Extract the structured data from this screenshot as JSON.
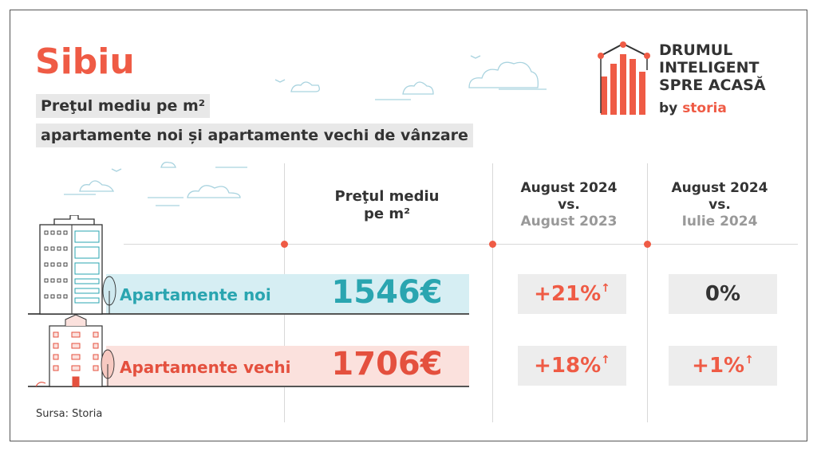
{
  "title": "Sibiu",
  "subtitle": {
    "line1": "Preţul mediu pe m²",
    "line2": "apartamente noi și apartamente vechi de vânzare"
  },
  "logo": {
    "line1": "DRUMUL",
    "line2": "INTELIGENT",
    "line3": "SPRE ACASĂ",
    "by": "by",
    "brand": "storia"
  },
  "headers": {
    "price": {
      "line1": "Preţul mediu",
      "line2": "pe m²"
    },
    "yoy": {
      "line1": "August 2024",
      "line2": "vs.",
      "line3": "August 2023"
    },
    "mom": {
      "line1": "August 2024",
      "line2": "vs.",
      "line3": "Iulie 2024"
    }
  },
  "rows": [
    {
      "label": "Apartamente noi",
      "price": "1546€",
      "yoy": "+21%",
      "yoy_arrow": "↑",
      "mom": "0%",
      "mom_arrow": "",
      "color": "#2aa5b0",
      "band": "#d6eef3"
    },
    {
      "label": "Apartamente vechi",
      "price": "1706€",
      "yoy": "+18%",
      "yoy_arrow": "↑",
      "mom": "+1%",
      "mom_arrow": "↑",
      "color": "#e4503e",
      "band": "#fbe1dd"
    }
  ],
  "source": "Sursa: Storia",
  "colors": {
    "accent": "#ef5b45",
    "teal": "#2aa5b0",
    "badge_bg": "#ededed"
  }
}
